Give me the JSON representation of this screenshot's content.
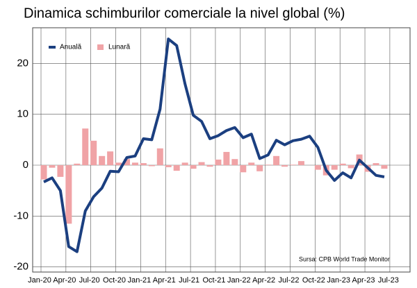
{
  "chart_data": {
    "type": "bar-line",
    "title": "Dinamica schimburilor comerciale la nivel global (%)",
    "annotation": "Sursa: CPB World Trade Monitor",
    "categories": [
      "Jan-20",
      null,
      null,
      "Apr-20",
      null,
      null,
      "Jul-20",
      null,
      null,
      "Oct-20",
      null,
      null,
      "Jan-21",
      null,
      null,
      "Apr-21",
      null,
      null,
      "Jul-21",
      null,
      null,
      "Oct-21",
      null,
      null,
      "Jan-22",
      null,
      null,
      "Apr-22",
      null,
      null,
      "Jul-22",
      null,
      null,
      "Oct-22",
      null,
      null,
      "Jan-23",
      null,
      null,
      "Apr-23",
      null,
      null,
      "Jul-23"
    ],
    "series": [
      {
        "name": "Anuală",
        "kind": "line",
        "color": "#1b3f80",
        "values": [
          -3.3,
          -2.5,
          -5,
          -16,
          -17,
          -9,
          -6.2,
          -4.5,
          -1.2,
          -1.3,
          1.5,
          1.8,
          5.2,
          5,
          11,
          24.8,
          23.5,
          16,
          9.8,
          8.6,
          5.2,
          5.8,
          6.8,
          7.4,
          5.4,
          6.1,
          1.3,
          2,
          4.9,
          4,
          4.8,
          5.1,
          5.7,
          3.5,
          -1,
          -3,
          -1.5,
          -2.5,
          1,
          -0.5,
          -2,
          -2.3,
          null
        ]
      },
      {
        "name": "Lunară",
        "kind": "bar",
        "color": "#f0a3a6",
        "values": [
          -2.8,
          -0.5,
          -2.3,
          -11.5,
          0.3,
          7.2,
          4.8,
          1.8,
          2.7,
          0.5,
          1.2,
          0.5,
          0.4,
          -0.2,
          3.3,
          -0.4,
          -1.1,
          0.5,
          -0.7,
          0.6,
          -0.3,
          1.1,
          2.6,
          1.2,
          -1.4,
          0.5,
          -1.2,
          0.1,
          1.8,
          -0.3,
          0.1,
          0.8,
          0,
          -0.9,
          -2,
          -0.9,
          0.3,
          -0.6,
          2.1,
          -1.3,
          0.4,
          -0.7,
          null
        ]
      }
    ],
    "ylim": [
      -21,
      27
    ],
    "yticks": [
      -20,
      -10,
      0,
      10,
      20
    ],
    "grid": true,
    "legend": "upper left"
  }
}
